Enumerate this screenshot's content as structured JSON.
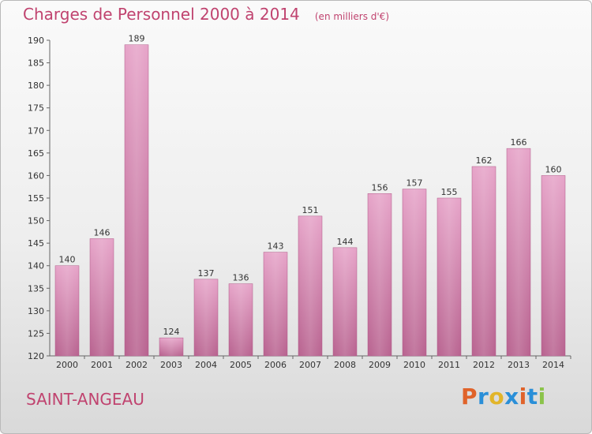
{
  "chart_data": {
    "type": "bar",
    "title": "Charges de Personnel 2000 à 2014",
    "subtitle": "(en milliers d'€)",
    "categories": [
      "2000",
      "2001",
      "2002",
      "2003",
      "2004",
      "2005",
      "2006",
      "2007",
      "2008",
      "2009",
      "2010",
      "2011",
      "2012",
      "2013",
      "2014"
    ],
    "values": [
      140,
      146,
      189,
      124,
      137,
      136,
      143,
      151,
      144,
      156,
      157,
      155,
      162,
      166,
      160
    ],
    "ylim": [
      120,
      190
    ],
    "yticks": [
      120,
      125,
      130,
      135,
      140,
      145,
      150,
      155,
      160,
      165,
      170,
      175,
      180,
      185,
      190
    ],
    "bar_color": "#c4619a",
    "grid": false
  },
  "commune": "SAINT-ANGEAU",
  "logo": {
    "letters": [
      "P",
      "r",
      "o",
      "x",
      "i",
      "t",
      "i"
    ],
    "colors": [
      "#e0632a",
      "#2a8fd8",
      "#e2b52a",
      "#2a8fd8",
      "#e0632a",
      "#2a8fd8",
      "#8bc34a"
    ]
  },
  "colors": {
    "accent": "#c0436f"
  }
}
